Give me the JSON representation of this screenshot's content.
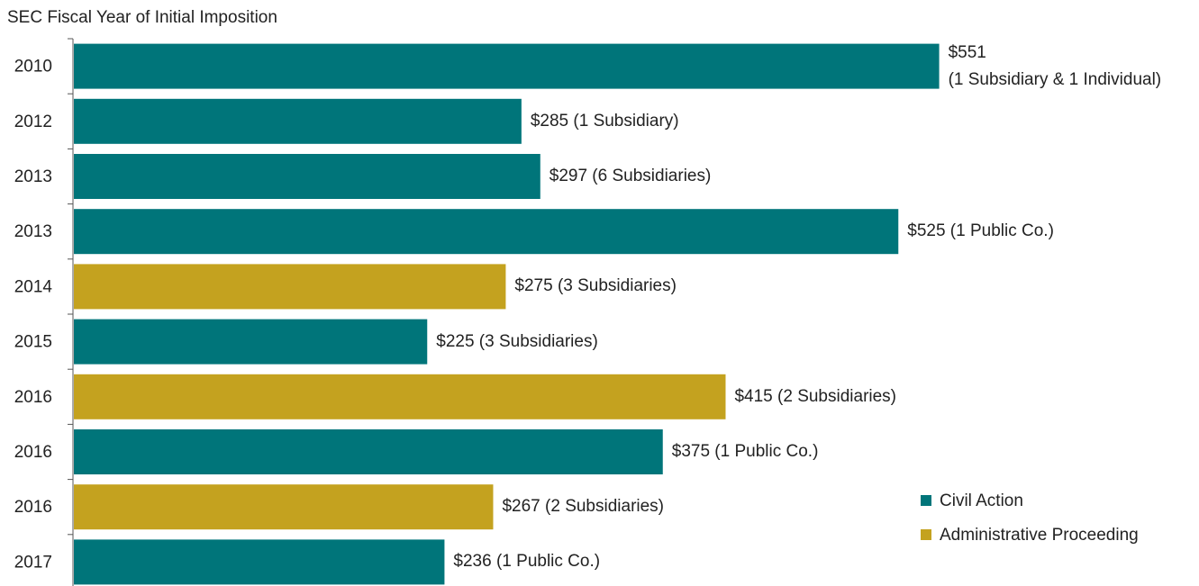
{
  "chart_data": {
    "type": "hbar",
    "y_axis_label": "SEC Fiscal Year of Initial Imposition",
    "categories": [
      "2010",
      "2012",
      "2013",
      "2013",
      "2014",
      "2015",
      "2016",
      "2016",
      "2016",
      "2017"
    ],
    "values": [
      551,
      285,
      297,
      525,
      275,
      225,
      415,
      375,
      267,
      236
    ],
    "value_labels": [
      "$551\n(1 Subsidiary & 1 Individual)",
      "$285 (1 Subsidiary)",
      "$297 (6 Subsidiaries)",
      "$525 (1 Public Co.)",
      "$275 (3 Subsidiaries)",
      "$225 (3 Subsidiaries)",
      "$415 (2 Subsidiaries)",
      "$375 (1 Public Co.)",
      "$267 (2 Subsidiaries)",
      "$236 (1 Public Co.)"
    ],
    "colors": [
      "#00757a",
      "#00757a",
      "#00757a",
      "#00757a",
      "#c4a21f",
      "#00757a",
      "#c4a21f",
      "#00757a",
      "#c4a21f",
      "#00757a"
    ],
    "xlim": [
      0,
      600
    ],
    "legend": [
      {
        "name": "Civil Action",
        "color": "#00757a"
      },
      {
        "name": "Administrative Proceeding",
        "color": "#c4a21f"
      }
    ],
    "legend_position": "lower right"
  }
}
